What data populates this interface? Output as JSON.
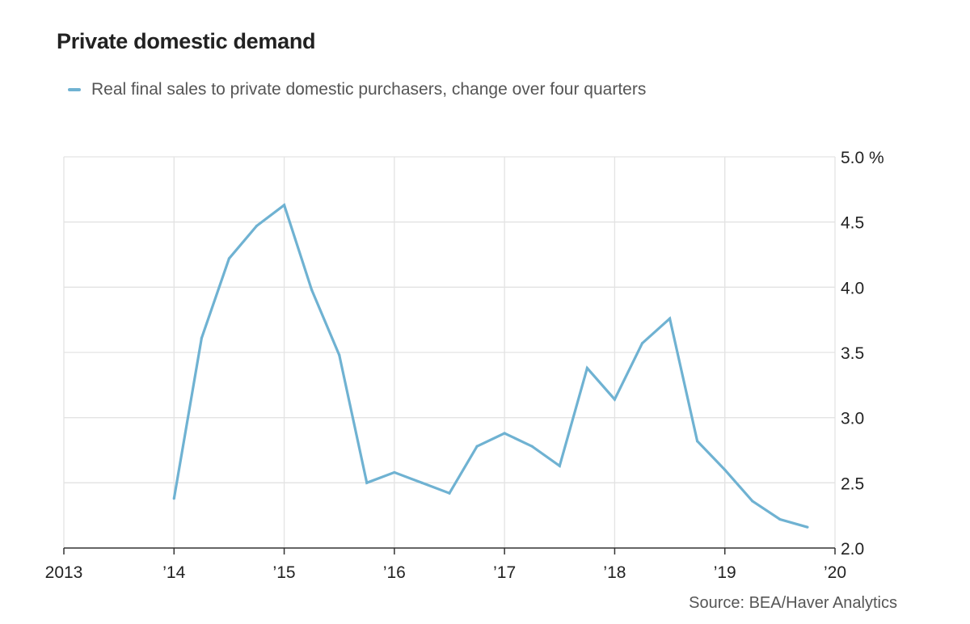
{
  "chart_data": {
    "type": "line",
    "title": "Private domestic demand",
    "source": "Source: BEA/Haver Analytics",
    "xlabel": "",
    "ylabel": "%",
    "xlim": [
      2013,
      2020
    ],
    "ylim": [
      2.0,
      5.0
    ],
    "x_ticks": [
      {
        "value": 2013,
        "label": "2013"
      },
      {
        "value": 2014,
        "label": "’14"
      },
      {
        "value": 2015,
        "label": "’15"
      },
      {
        "value": 2016,
        "label": "’16"
      },
      {
        "value": 2017,
        "label": "’17"
      },
      {
        "value": 2018,
        "label": "’18"
      },
      {
        "value": 2019,
        "label": "’19"
      },
      {
        "value": 2020,
        "label": "’20"
      }
    ],
    "y_ticks": [
      {
        "value": 5.0,
        "label": "5.0 %"
      },
      {
        "value": 4.5,
        "label": "4.5"
      },
      {
        "value": 4.0,
        "label": "4.0"
      },
      {
        "value": 3.5,
        "label": "3.5"
      },
      {
        "value": 3.0,
        "label": "3.0"
      },
      {
        "value": 2.5,
        "label": "2.5"
      },
      {
        "value": 2.0,
        "label": "2.0"
      }
    ],
    "series": [
      {
        "name": "Real final sales to private domestic purchasers, change over four quarters",
        "color": "#6fb2d2",
        "x": [
          2014.0,
          2014.25,
          2014.5,
          2014.75,
          2015.0,
          2015.25,
          2015.5,
          2015.75,
          2016.0,
          2016.25,
          2016.5,
          2016.75,
          2017.0,
          2017.25,
          2017.5,
          2017.75,
          2018.0,
          2018.25,
          2018.5,
          2018.75,
          2019.0,
          2019.25,
          2019.5,
          2019.75
        ],
        "values": [
          2.38,
          3.61,
          4.22,
          4.47,
          4.63,
          3.98,
          3.48,
          2.5,
          2.58,
          2.5,
          2.42,
          2.78,
          2.88,
          2.78,
          2.63,
          3.38,
          3.14,
          3.57,
          3.76,
          2.82,
          2.6,
          2.36,
          2.22,
          2.16
        ]
      }
    ]
  },
  "colors": {
    "grid": "#e3e3e3",
    "axis": "#333333",
    "tick_text": "#222222"
  }
}
